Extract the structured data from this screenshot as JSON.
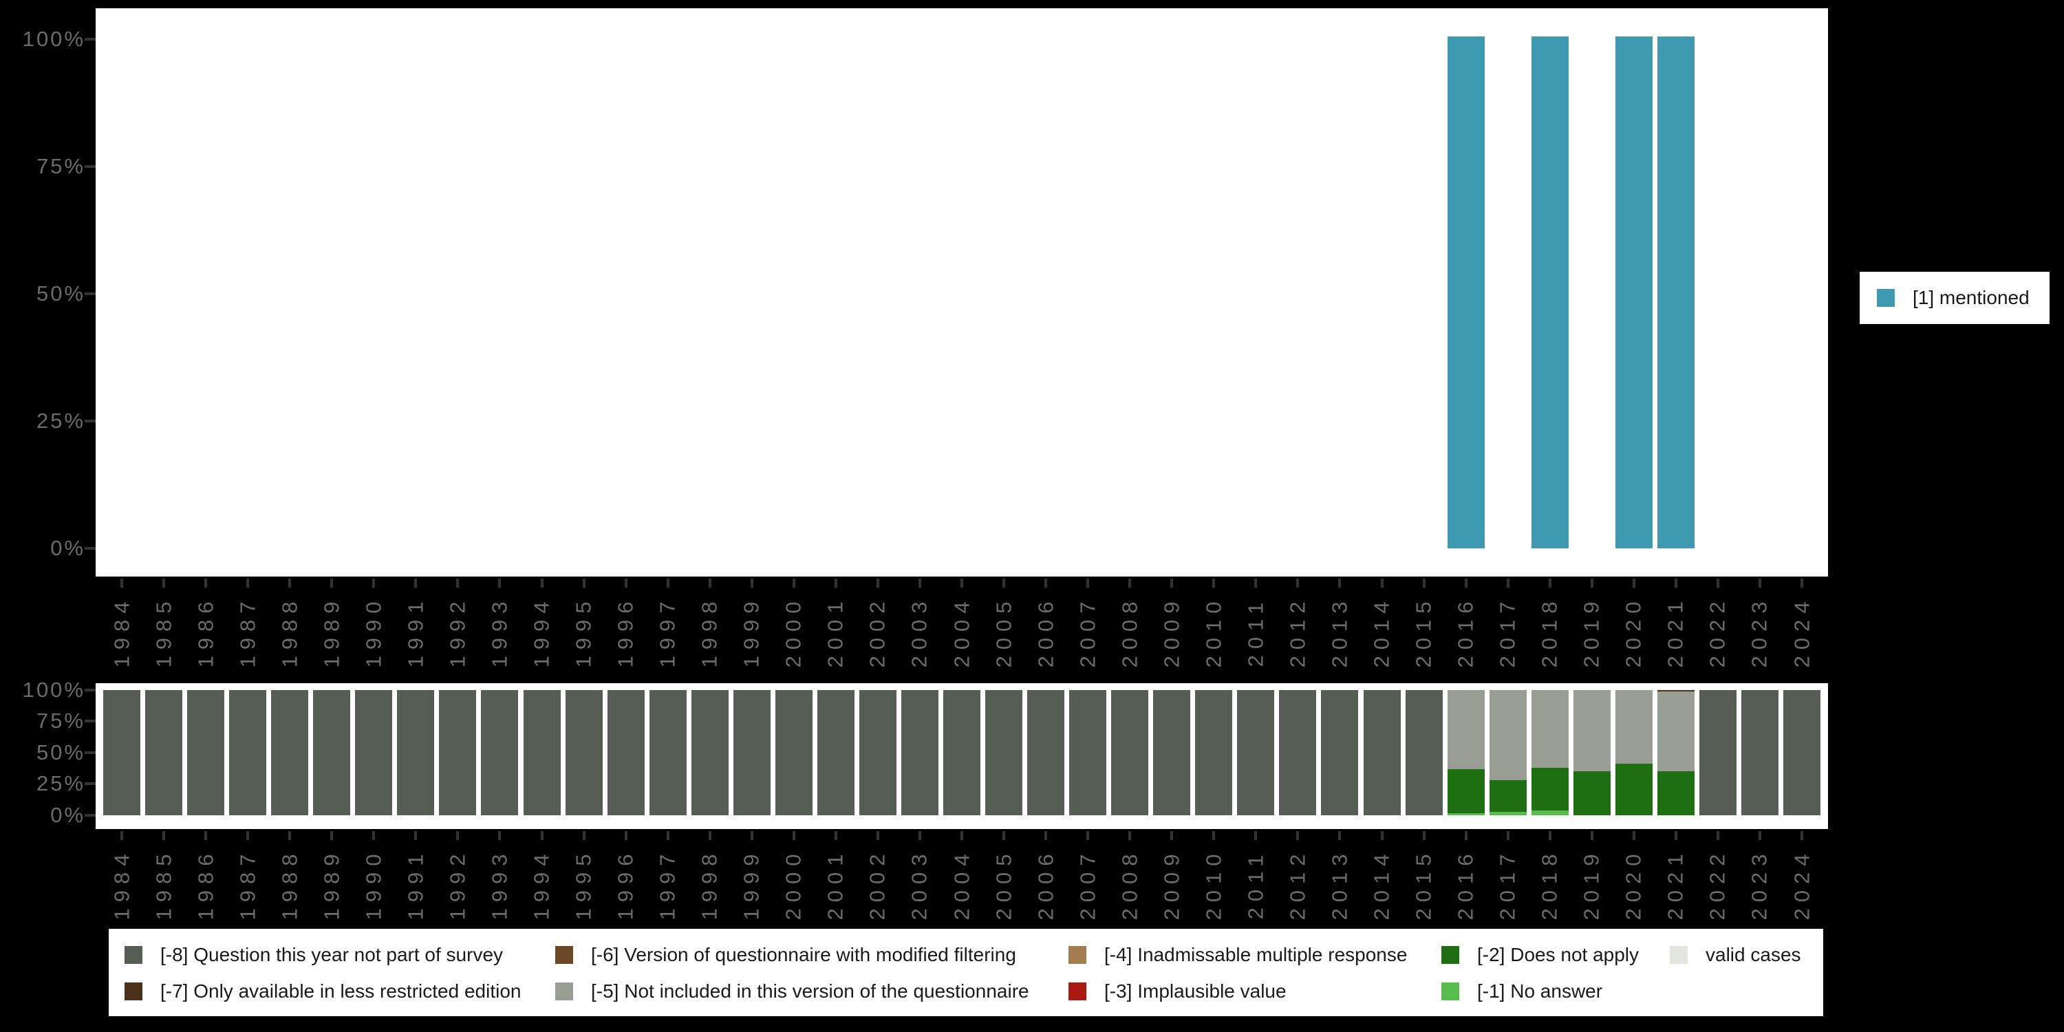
{
  "colors": {
    "background": "#000000",
    "panel": "#FFFFFF",
    "mentioned": "#3D9AB1",
    "m8": "#565D55",
    "m7": "#4A3118",
    "m6": "#6C4625",
    "m5": "#999E95",
    "m4": "#A57C4E",
    "m3": "#AA1A10",
    "m2": "#1E6E12",
    "m1": "#58BE4B",
    "valid": "#E2E6DF",
    "axis_text": "#6B6B6B",
    "tick": "#333333",
    "legend_text": "#1A1A1A"
  },
  "years": [
    "1984",
    "1985",
    "1986",
    "1987",
    "1988",
    "1989",
    "1990",
    "1991",
    "1992",
    "1993",
    "1994",
    "1995",
    "1996",
    "1997",
    "1998",
    "1999",
    "2000",
    "2001",
    "2002",
    "2003",
    "2004",
    "2005",
    "2006",
    "2007",
    "2008",
    "2009",
    "2010",
    "2011",
    "2012",
    "2013",
    "2014",
    "2015",
    "2016",
    "2017",
    "2018",
    "2019",
    "2020",
    "2021",
    "2022",
    "2023",
    "2024"
  ],
  "y_axis_ticks_top_to_bottom": [
    "100%",
    "75%",
    "50%",
    "25%",
    "0%"
  ],
  "legend_right": {
    "label": "[1] mentioned",
    "color_key": "mentioned"
  },
  "legend_bottom": {
    "entries": [
      {
        "col": 0,
        "row": 0,
        "color_key": "m8",
        "label": "[-8] Question this year not part of survey"
      },
      {
        "col": 0,
        "row": 1,
        "color_key": "m7",
        "label": "[-7] Only available in less restricted edition"
      },
      {
        "col": 1,
        "row": 0,
        "color_key": "m6",
        "label": "[-6] Version of questionnaire with modified filtering"
      },
      {
        "col": 1,
        "row": 1,
        "color_key": "m5",
        "label": "[-5] Not included in this version of the questionnaire"
      },
      {
        "col": 2,
        "row": 0,
        "color_key": "m4",
        "label": "[-4] Inadmissable multiple response"
      },
      {
        "col": 2,
        "row": 1,
        "color_key": "m3",
        "label": "[-3] Implausible value"
      },
      {
        "col": 3,
        "row": 0,
        "color_key": "m2",
        "label": "[-2] Does not apply"
      },
      {
        "col": 3,
        "row": 1,
        "color_key": "m1",
        "label": "[-1] No answer"
      },
      {
        "col": 4,
        "row": 0,
        "color_key": "valid",
        "label": "valid cases"
      }
    ]
  },
  "chart_data": [
    {
      "type": "bar",
      "title": "",
      "unit": "percent",
      "categories": [
        "1984",
        "1985",
        "1986",
        "1987",
        "1988",
        "1989",
        "1990",
        "1991",
        "1992",
        "1993",
        "1994",
        "1995",
        "1996",
        "1997",
        "1998",
        "1999",
        "2000",
        "2001",
        "2002",
        "2003",
        "2004",
        "2005",
        "2006",
        "2007",
        "2008",
        "2009",
        "2010",
        "2011",
        "2012",
        "2013",
        "2014",
        "2015",
        "2016",
        "2017",
        "2018",
        "2019",
        "2020",
        "2021",
        "2022",
        "2023",
        "2024"
      ],
      "series": [
        {
          "name": "[1] mentioned",
          "color_key": "mentioned",
          "values_by_year": {
            "2016": 100,
            "2018": 100,
            "2020": 100,
            "2021": 100
          }
        }
      ],
      "ylim": [
        0,
        100
      ],
      "ytick_labels": [
        "0%",
        "25%",
        "50%",
        "75%",
        "100%"
      ],
      "grid": false,
      "legend_position": "right"
    },
    {
      "type": "stacked_bar",
      "title": "",
      "unit": "percent",
      "categories": [
        "1984",
        "1985",
        "1986",
        "1987",
        "1988",
        "1989",
        "1990",
        "1991",
        "1992",
        "1993",
        "1994",
        "1995",
        "1996",
        "1997",
        "1998",
        "1999",
        "2000",
        "2001",
        "2002",
        "2003",
        "2004",
        "2005",
        "2006",
        "2007",
        "2008",
        "2009",
        "2010",
        "2011",
        "2012",
        "2013",
        "2014",
        "2015",
        "2016",
        "2017",
        "2018",
        "2019",
        "2020",
        "2021",
        "2022",
        "2023",
        "2024"
      ],
      "default_stack_bottom_to_top": [
        {
          "name": "[-8] Question this year not part of survey",
          "color_key": "m8",
          "value": 100
        }
      ],
      "stacks_by_year_bottom_to_top": {
        "2016": [
          {
            "name": "[-1] No answer",
            "color_key": "m1",
            "value": 1.5
          },
          {
            "name": "[-2] Does not apply",
            "color_key": "m2",
            "value": 35.5
          },
          {
            "name": "[-5] Not included in this version of the questionnaire",
            "color_key": "m5",
            "value": 63
          }
        ],
        "2017": [
          {
            "name": "[-1] No answer",
            "color_key": "m1",
            "value": 3
          },
          {
            "name": "[-2] Does not apply",
            "color_key": "m2",
            "value": 25
          },
          {
            "name": "[-5] Not included in this version of the questionnaire",
            "color_key": "m5",
            "value": 72
          }
        ],
        "2018": [
          {
            "name": "[-1] No answer",
            "color_key": "m1",
            "value": 4
          },
          {
            "name": "[-2] Does not apply",
            "color_key": "m2",
            "value": 34
          },
          {
            "name": "[-5] Not included in this version of the questionnaire",
            "color_key": "m5",
            "value": 62
          }
        ],
        "2019": [
          {
            "name": "[-2] Does not apply",
            "color_key": "m2",
            "value": 35
          },
          {
            "name": "[-5] Not included in this version of the questionnaire",
            "color_key": "m5",
            "value": 65
          }
        ],
        "2020": [
          {
            "name": "[-2] Does not apply",
            "color_key": "m2",
            "value": 41
          },
          {
            "name": "[-5] Not included in this version of the questionnaire",
            "color_key": "m5",
            "value": 59
          }
        ],
        "2021": [
          {
            "name": "[-2] Does not apply",
            "color_key": "m2",
            "value": 35
          },
          {
            "name": "[-5] Not included in this version of the questionnaire",
            "color_key": "m5",
            "value": 64
          },
          {
            "name": "[-7] Only available in less restricted edition",
            "color_key": "m7",
            "value": 1
          }
        ]
      },
      "ylim": [
        0,
        100
      ],
      "ytick_labels": [
        "0%",
        "25%",
        "50%",
        "75%",
        "100%"
      ],
      "grid": false
    }
  ]
}
